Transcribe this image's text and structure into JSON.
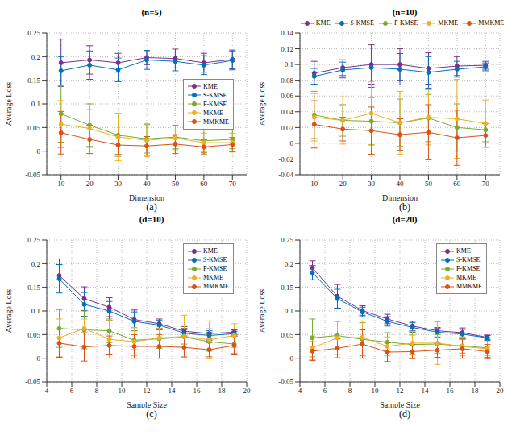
{
  "chart_data": [
    {
      "type": "line",
      "title": "(n=5)",
      "caption": "(a)",
      "x_label": "Dimension",
      "y_label": "Average Loss",
      "x": [
        10,
        20,
        30,
        40,
        50,
        60,
        70
      ],
      "xlim": [
        5,
        75
      ],
      "xticks": [
        10,
        20,
        30,
        40,
        50,
        60,
        70
      ],
      "ylim": [
        -0.05,
        0.25
      ],
      "yticks": [
        -0.05,
        0,
        0.05,
        0.1,
        0.15,
        0.2,
        0.25
      ],
      "grid": true,
      "legend": "right",
      "marker": "circle",
      "series": [
        {
          "name": "KME",
          "color": "#7E2F8E",
          "values": [
            0.187,
            0.193,
            0.187,
            0.198,
            0.196,
            0.187,
            0.194
          ],
          "errors": [
            0.05,
            0.03,
            0.02,
            0.015,
            0.02,
            0.02,
            0.02
          ]
        },
        {
          "name": "S-KMSE",
          "color": "#0072BD",
          "values": [
            0.17,
            0.182,
            0.172,
            0.193,
            0.19,
            0.182,
            0.192
          ],
          "errors": [
            0.03,
            0.03,
            0.025,
            0.02,
            0.02,
            0.02,
            0.02
          ]
        },
        {
          "name": "F-KMSE",
          "color": "#77AC30",
          "values": [
            0.079,
            0.055,
            0.034,
            0.026,
            0.03,
            0.022,
            0.025
          ],
          "errors": [
            0.06,
            0.045,
            0.045,
            0.03,
            0.025,
            0.025,
            0.02
          ]
        },
        {
          "name": "MKME",
          "color": "#EDB120",
          "values": [
            0.057,
            0.048,
            0.03,
            0.023,
            0.028,
            0.018,
            0.018
          ],
          "errors": [
            0.05,
            0.04,
            0.05,
            0.035,
            0.025,
            0.02,
            0.02
          ]
        },
        {
          "name": "MMKME",
          "color": "#D95319",
          "values": [
            0.039,
            0.025,
            0.013,
            0.011,
            0.015,
            0.009,
            0.014
          ],
          "errors": [
            0.045,
            0.03,
            0.02,
            0.02,
            0.02,
            0.015,
            0.015
          ]
        }
      ]
    },
    {
      "type": "line",
      "title": "(n=10)",
      "caption": "(b)",
      "x_label": "Dimension",
      "y_label": "Average Loss",
      "x": [
        10,
        20,
        30,
        40,
        50,
        60,
        70
      ],
      "xlim": [
        5,
        75
      ],
      "xticks": [
        10,
        20,
        30,
        40,
        50,
        60,
        70
      ],
      "ylim": [
        -0.04,
        0.14
      ],
      "yticks": [
        -0.04,
        -0.02,
        0,
        0.02,
        0.04,
        0.06,
        0.08,
        0.1,
        0.12,
        0.14
      ],
      "grid": true,
      "legend": "top",
      "marker": "circle",
      "series": [
        {
          "name": "KME",
          "color": "#7E2F8E",
          "values": [
            0.089,
            0.096,
            0.1,
            0.1,
            0.095,
            0.098,
            0.099
          ],
          "errors": [
            0.015,
            0.01,
            0.025,
            0.02,
            0.02,
            0.012,
            0.005
          ]
        },
        {
          "name": "S-KMSE",
          "color": "#0072BD",
          "values": [
            0.085,
            0.093,
            0.096,
            0.094,
            0.09,
            0.094,
            0.097
          ],
          "errors": [
            0.01,
            0.01,
            0.025,
            0.02,
            0.02,
            0.01,
            0.005
          ]
        },
        {
          "name": "F-KMSE",
          "color": "#77AC30",
          "values": [
            0.036,
            0.029,
            0.028,
            0.026,
            0.032,
            0.02,
            0.017
          ],
          "errors": [
            0.03,
            0.02,
            0.03,
            0.03,
            0.03,
            0.03,
            0.015
          ]
        },
        {
          "name": "MKME",
          "color": "#EDB120",
          "values": [
            0.033,
            0.029,
            0.038,
            0.026,
            0.033,
            0.031,
            0.025
          ],
          "errors": [
            0.03,
            0.03,
            0.04,
            0.04,
            0.035,
            0.05,
            0.03
          ]
        },
        {
          "name": "MMKME",
          "color": "#D95319",
          "values": [
            0.024,
            0.018,
            0.016,
            0.011,
            0.014,
            0.007,
            0.01
          ],
          "errors": [
            0.03,
            0.015,
            0.03,
            0.02,
            0.035,
            0.035,
            0.015
          ]
        }
      ]
    },
    {
      "type": "line",
      "title": "(d=10)",
      "caption": "(c)",
      "x_label": "Sample Size",
      "y_label": "Average Loss",
      "x": [
        5,
        7,
        9,
        11,
        13,
        15,
        17,
        19
      ],
      "xlim": [
        4,
        20
      ],
      "xticks": [
        4,
        6,
        8,
        10,
        12,
        14,
        16,
        18,
        20
      ],
      "ylim": [
        -0.05,
        0.25
      ],
      "yticks": [
        -0.05,
        0,
        0.05,
        0.1,
        0.15,
        0.2,
        0.25
      ],
      "grid": true,
      "legend": "upper right",
      "marker": "circle",
      "series": [
        {
          "name": "KME",
          "color": "#7E2F8E",
          "values": [
            0.175,
            0.126,
            0.108,
            0.082,
            0.073,
            0.057,
            0.052,
            0.055
          ],
          "errors": [
            0.035,
            0.025,
            0.02,
            0.02,
            0.01,
            0.01,
            0.01,
            0.005
          ]
        },
        {
          "name": "S-KMSE",
          "color": "#0072BD",
          "values": [
            0.168,
            0.114,
            0.1,
            0.078,
            0.07,
            0.053,
            0.048,
            0.052
          ],
          "errors": [
            0.03,
            0.025,
            0.02,
            0.02,
            0.01,
            0.01,
            0.01,
            0.005
          ]
        },
        {
          "name": "F-KMSE",
          "color": "#77AC30",
          "values": [
            0.063,
            0.06,
            0.058,
            0.038,
            0.041,
            0.045,
            0.035,
            0.03
          ],
          "errors": [
            0.04,
            0.04,
            0.025,
            0.02,
            0.02,
            0.015,
            0.02,
            0.02
          ]
        },
        {
          "name": "MKME",
          "color": "#EDB120",
          "values": [
            0.043,
            0.063,
            0.04,
            0.035,
            0.043,
            0.046,
            0.039,
            0.048
          ],
          "errors": [
            0.04,
            0.02,
            0.04,
            0.03,
            0.02,
            0.045,
            0.04,
            0.025
          ]
        },
        {
          "name": "MMKME",
          "color": "#D95319",
          "values": [
            0.032,
            0.024,
            0.027,
            0.025,
            0.025,
            0.023,
            0.018,
            0.027
          ],
          "errors": [
            0.03,
            0.03,
            0.02,
            0.025,
            0.025,
            0.02,
            0.015,
            0.02
          ]
        }
      ]
    },
    {
      "type": "line",
      "title": "(d=20)",
      "caption": "(d)",
      "x_label": "Sample Size",
      "y_label": "Average Loss",
      "x": [
        5,
        7,
        9,
        11,
        13,
        15,
        17,
        19
      ],
      "xlim": [
        4,
        20
      ],
      "xticks": [
        4,
        6,
        8,
        10,
        12,
        14,
        16,
        18,
        20
      ],
      "ylim": [
        -0.05,
        0.25
      ],
      "yticks": [
        -0.05,
        0,
        0.05,
        0.1,
        0.15,
        0.2,
        0.25
      ],
      "grid": true,
      "legend": "upper right",
      "marker": "circle",
      "series": [
        {
          "name": "KME",
          "color": "#7E2F8E",
          "values": [
            0.191,
            0.131,
            0.101,
            0.083,
            0.068,
            0.058,
            0.054,
            0.044
          ],
          "errors": [
            0.015,
            0.025,
            0.01,
            0.01,
            0.01,
            0.005,
            0.01,
            0.005
          ]
        },
        {
          "name": "S-KMSE",
          "color": "#0072BD",
          "values": [
            0.181,
            0.126,
            0.098,
            0.078,
            0.065,
            0.055,
            0.051,
            0.043
          ],
          "errors": [
            0.015,
            0.02,
            0.01,
            0.01,
            0.01,
            0.01,
            0.01,
            0.005
          ]
        },
        {
          "name": "F-KMSE",
          "color": "#77AC30",
          "values": [
            0.043,
            0.048,
            0.04,
            0.034,
            0.029,
            0.03,
            0.026,
            0.022
          ],
          "errors": [
            0.04,
            0.03,
            0.035,
            0.02,
            0.02,
            0.02,
            0.015,
            0.02
          ]
        },
        {
          "name": "MKME",
          "color": "#EDB120",
          "values": [
            0.022,
            0.043,
            0.044,
            0.025,
            0.032,
            0.032,
            0.025,
            0.02
          ],
          "errors": [
            0.025,
            0.035,
            0.035,
            0.02,
            0.025,
            0.045,
            0.02,
            0.015
          ]
        },
        {
          "name": "MMKME",
          "color": "#D95319",
          "values": [
            0.015,
            0.021,
            0.03,
            0.013,
            0.014,
            0.017,
            0.02,
            0.014
          ],
          "errors": [
            0.02,
            0.02,
            0.03,
            0.02,
            0.015,
            0.015,
            0.02,
            0.015
          ]
        }
      ]
    }
  ]
}
